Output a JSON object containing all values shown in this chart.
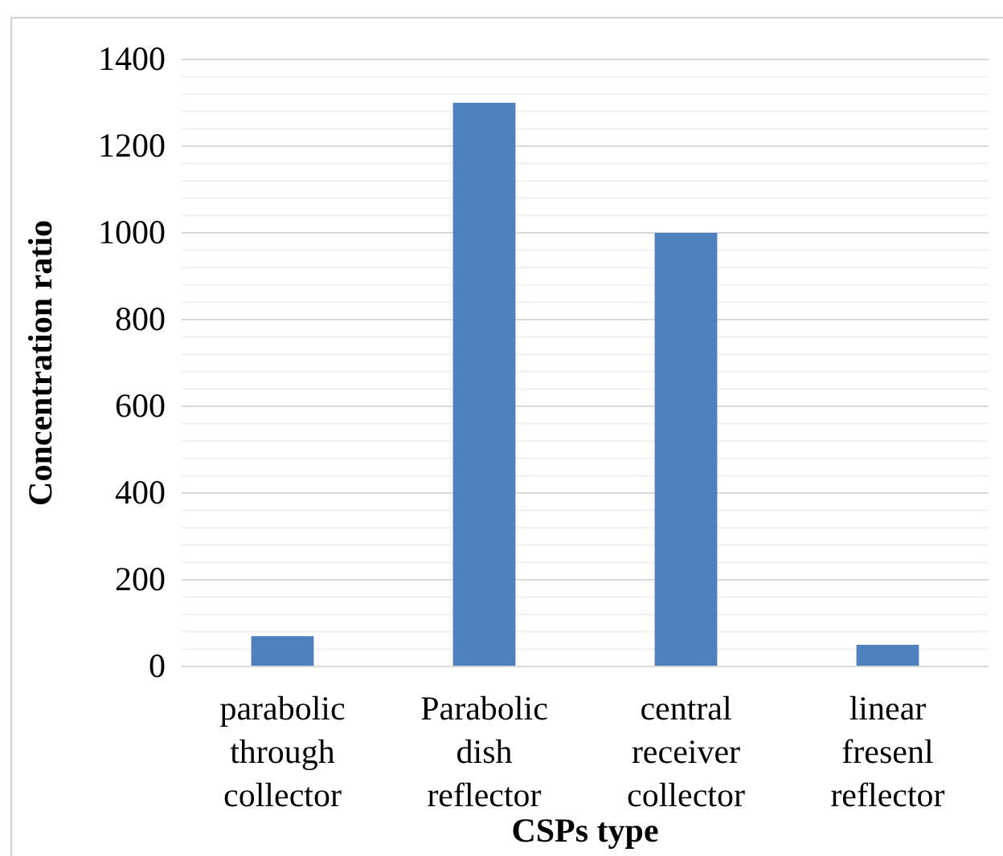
{
  "chart_data": {
    "type": "bar",
    "xlabel": "CSPs type",
    "ylabel": "Concentration ratio",
    "categories": [
      "parabolic through collector",
      "Parabolic dish reflector",
      "central receiver collector",
      "linear fresenl reflector"
    ],
    "values": [
      70,
      1300,
      1000,
      50
    ],
    "color": "#4f81bd",
    "ylim": [
      0,
      1400
    ],
    "yticks": [
      0,
      {
        "value": 40,
        "label": null
      },
      {
        "value": 80,
        "label": null
      },
      {
        "value": 120,
        "label": null
      },
      {
        "value": 160,
        "label": null
      },
      200,
      {
        "value": 240,
        "label": null
      },
      {
        "value": 280,
        "label": null
      },
      {
        "value": 320,
        "label": null
      },
      {
        "value": 360,
        "label": null
      },
      400,
      {
        "value": 440,
        "label": null
      },
      {
        "value": 480,
        "label": null
      },
      {
        "value": 520,
        "label": null
      },
      {
        "value": 560,
        "label": null
      },
      600,
      {
        "value": 640,
        "label": null
      },
      {
        "value": 680,
        "label": null
      },
      {
        "value": 720,
        "label": null
      },
      {
        "value": 760,
        "label": null
      },
      800,
      {
        "value": 840,
        "label": null
      },
      {
        "value": 880,
        "label": null
      },
      {
        "value": 920,
        "label": null
      },
      {
        "value": 960,
        "label": null
      },
      1000,
      {
        "value": 1040,
        "label": null
      },
      {
        "value": 1080,
        "label": null
      },
      {
        "value": 1120,
        "label": null
      },
      {
        "value": 1160,
        "label": null
      },
      1200,
      {
        "value": 1240,
        "label": null
      },
      {
        "value": 1280,
        "label": null
      },
      {
        "value": 1320,
        "label": null
      },
      {
        "value": 1360,
        "label": null
      },
      1400
    ],
    "grid": true
  }
}
